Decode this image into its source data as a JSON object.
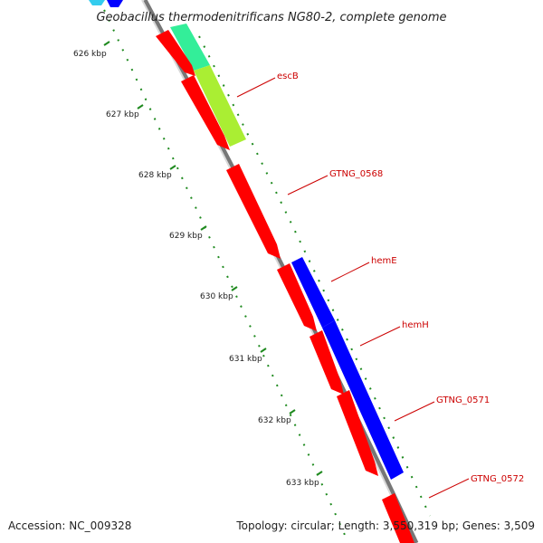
{
  "title": "Geobacillus thermodenitrificans NG80-2, complete genome",
  "accession": "Accession: NC_009328",
  "topology": "Topology: circular; Length: 3,550,319 bp; Genes: 3,509",
  "colors": {
    "backbone": "#8c8c8c",
    "ticks": "#1f8a1f",
    "label": "#cc0000",
    "gene_red": "#ff0000",
    "gene_blue": "#0000ff",
    "gene_teal": "#33ee99",
    "gene_lime": "#aaee33",
    "gene_cyan": "#33ccee"
  },
  "scale_labels": [
    "626 kbp",
    "627 kbp",
    "628 kbp",
    "629 kbp",
    "630 kbp",
    "631 kbp",
    "632 kbp",
    "633 kbp"
  ],
  "gene_labels": [
    "escB",
    "GTNG_0568",
    "hemE",
    "hemH",
    "GTNG_0571",
    "GTNG_0572"
  ]
}
